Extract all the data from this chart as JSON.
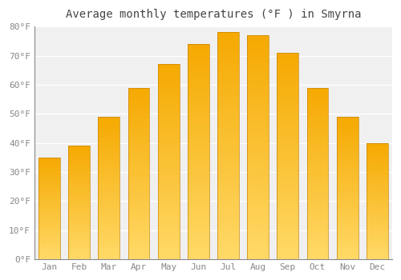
{
  "title": "Average monthly temperatures (°F ) in Smyrna",
  "months": [
    "Jan",
    "Feb",
    "Mar",
    "Apr",
    "May",
    "Jun",
    "Jul",
    "Aug",
    "Sep",
    "Oct",
    "Nov",
    "Dec"
  ],
  "values": [
    35,
    39,
    49,
    59,
    67,
    74,
    78,
    77,
    71,
    59,
    49,
    40
  ],
  "bar_color_top": "#F5A800",
  "bar_color_bottom": "#FFD966",
  "bar_edge_color": "#C8860A",
  "ylim": [
    0,
    80
  ],
  "yticks": [
    0,
    10,
    20,
    30,
    40,
    50,
    60,
    70,
    80
  ],
  "ytick_labels": [
    "0°F",
    "10°F",
    "20°F",
    "30°F",
    "40°F",
    "50°F",
    "60°F",
    "70°F",
    "80°F"
  ],
  "background_color": "#ffffff",
  "plot_bg_color": "#f0f0f0",
  "grid_color": "#ffffff",
  "title_fontsize": 10,
  "tick_fontsize": 8,
  "font_family": "monospace"
}
